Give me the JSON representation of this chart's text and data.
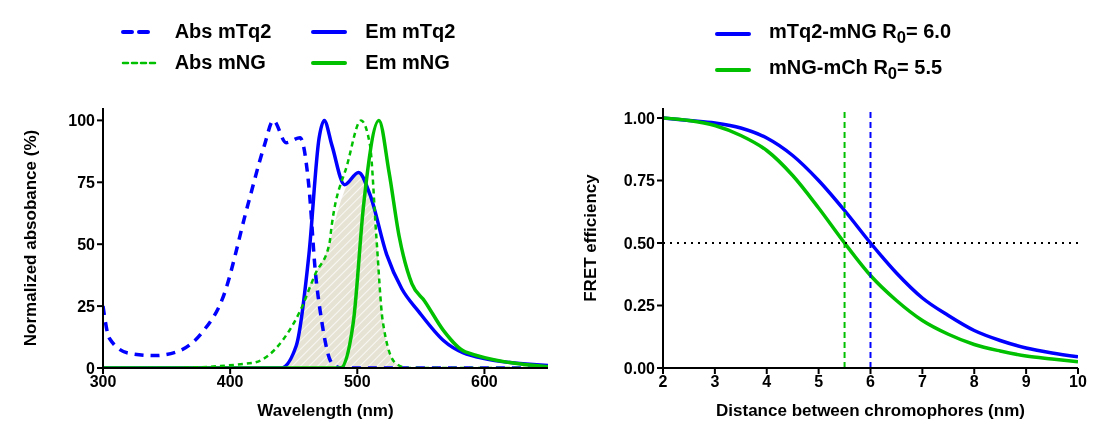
{
  "chart_data": [
    {
      "type": "line",
      "xlabel": "Wavelength (nm)",
      "ylabel": "Normalized absobance (%)",
      "xlim": [
        300,
        650
      ],
      "xticks": [
        300,
        400,
        500,
        600
      ],
      "ylim": [
        0,
        105
      ],
      "yticks": [
        0,
        25,
        50,
        75,
        100
      ],
      "legend": "top",
      "grid": false,
      "marker": "none",
      "series": [
        {
          "name": "Abs mTq2",
          "color": "#0000ff",
          "line_style": "dashed",
          "x": [
            300,
            305,
            320,
            340,
            358,
            379,
            394,
            414,
            427,
            434,
            444,
            455,
            462,
            467,
            472,
            478,
            482,
            488,
            650
          ],
          "values": [
            25,
            12,
            6,
            5,
            6.5,
            15,
            28,
            66,
            90,
            100,
            91,
            93,
            73,
            39,
            19,
            4,
            1,
            0,
            0
          ]
        },
        {
          "name": "Em mTq2",
          "color": "#0000ff",
          "line_style": "solid",
          "x": [
            300,
            440,
            452,
            462,
            470,
            474,
            480,
            490,
            501,
            510,
            523,
            535,
            548,
            568,
            598,
            650
          ],
          "values": [
            0,
            0,
            9,
            46,
            93,
            100,
            90,
            74,
            79,
            70,
            46,
            32,
            23,
            11,
            4,
            1
          ]
        },
        {
          "name": "Abs mNG",
          "color": "#00c000",
          "line_style": "dashed",
          "x": [
            300,
            350,
            417,
            441,
            455,
            467,
            478,
            480,
            492,
            503,
            510,
            515,
            520,
            530,
            540,
            650
          ],
          "values": [
            0,
            0,
            2,
            11,
            23,
            38,
            50,
            58,
            82,
            100,
            90,
            53,
            19,
            2,
            0,
            0
          ]
        },
        {
          "name": "Em mNG",
          "color": "#00c000",
          "line_style": "solid",
          "x": [
            300,
            487,
            497,
            505,
            517,
            525,
            533,
            543,
            553,
            568,
            585,
            650
          ],
          "values": [
            0,
            0,
            19,
            66,
            100,
            79,
            53,
            34,
            27,
            15,
            6.5,
            0.5
          ]
        },
        {
          "type": "area",
          "color": "#d6d0b8",
          "x": [
            440,
            452,
            460,
            467,
            478,
            485,
            492,
            501,
            510,
            515,
            520,
            530,
            540
          ],
          "values": [
            0,
            9,
            30,
            38,
            50,
            64,
            74,
            79,
            70,
            53,
            19,
            2,
            0
          ]
        }
      ]
    },
    {
      "type": "line",
      "xlabel": "Distance between chromophores (nm)",
      "ylabel": "FRET efficiency",
      "xlim": [
        2,
        10
      ],
      "xticks": [
        2,
        3,
        4,
        5,
        6,
        7,
        8,
        9,
        10
      ],
      "ylim": [
        0,
        1.04
      ],
      "yticks": [
        {
          "value": 0,
          "label": "0.00"
        },
        {
          "value": 0.25,
          "label": "0.25"
        },
        {
          "value": 0.5,
          "label": "0.50"
        },
        {
          "value": 0.75,
          "label": "0.75"
        },
        {
          "value": 1,
          "label": "1.00"
        }
      ],
      "legend": "top",
      "grid": false,
      "marker": "none",
      "line_style": "solid",
      "series": [
        {
          "name": "mTq2-mNG R$_{0}$= 6.0",
          "color": "#0000ff",
          "x": [
            2,
            2.5,
            3,
            3.5,
            4,
            4.5,
            5,
            5.5,
            6,
            6.5,
            7,
            7.5,
            8,
            8.5,
            9,
            9.5,
            10
          ],
          "values": [
            1.0,
            0.99,
            0.98,
            0.96,
            0.92,
            0.85,
            0.75,
            0.63,
            0.5,
            0.38,
            0.28,
            0.21,
            0.15,
            0.11,
            0.08,
            0.06,
            0.045
          ]
        },
        {
          "name": "mNG-mCh R$_{0}$= 5.5",
          "color": "#00c000",
          "x": [
            2,
            2.5,
            3,
            3.5,
            4,
            4.5,
            5,
            5.5,
            6,
            6.5,
            7,
            7.5,
            8,
            8.5,
            9,
            9.5,
            10
          ],
          "values": [
            1.0,
            0.99,
            0.97,
            0.93,
            0.87,
            0.77,
            0.64,
            0.5,
            0.37,
            0.27,
            0.19,
            0.135,
            0.094,
            0.068,
            0.048,
            0.036,
            0.025
          ]
        }
      ],
      "ref_lines": [
        {
          "axis": "x",
          "value": 5.5,
          "color": "#00c000",
          "line_style": "dashed"
        },
        {
          "axis": "x",
          "value": 6,
          "color": "#0000ff",
          "line_style": "dashed"
        },
        {
          "axis": "y",
          "value": 0.5,
          "color": "#000000",
          "line_style": "dotted"
        }
      ]
    }
  ]
}
